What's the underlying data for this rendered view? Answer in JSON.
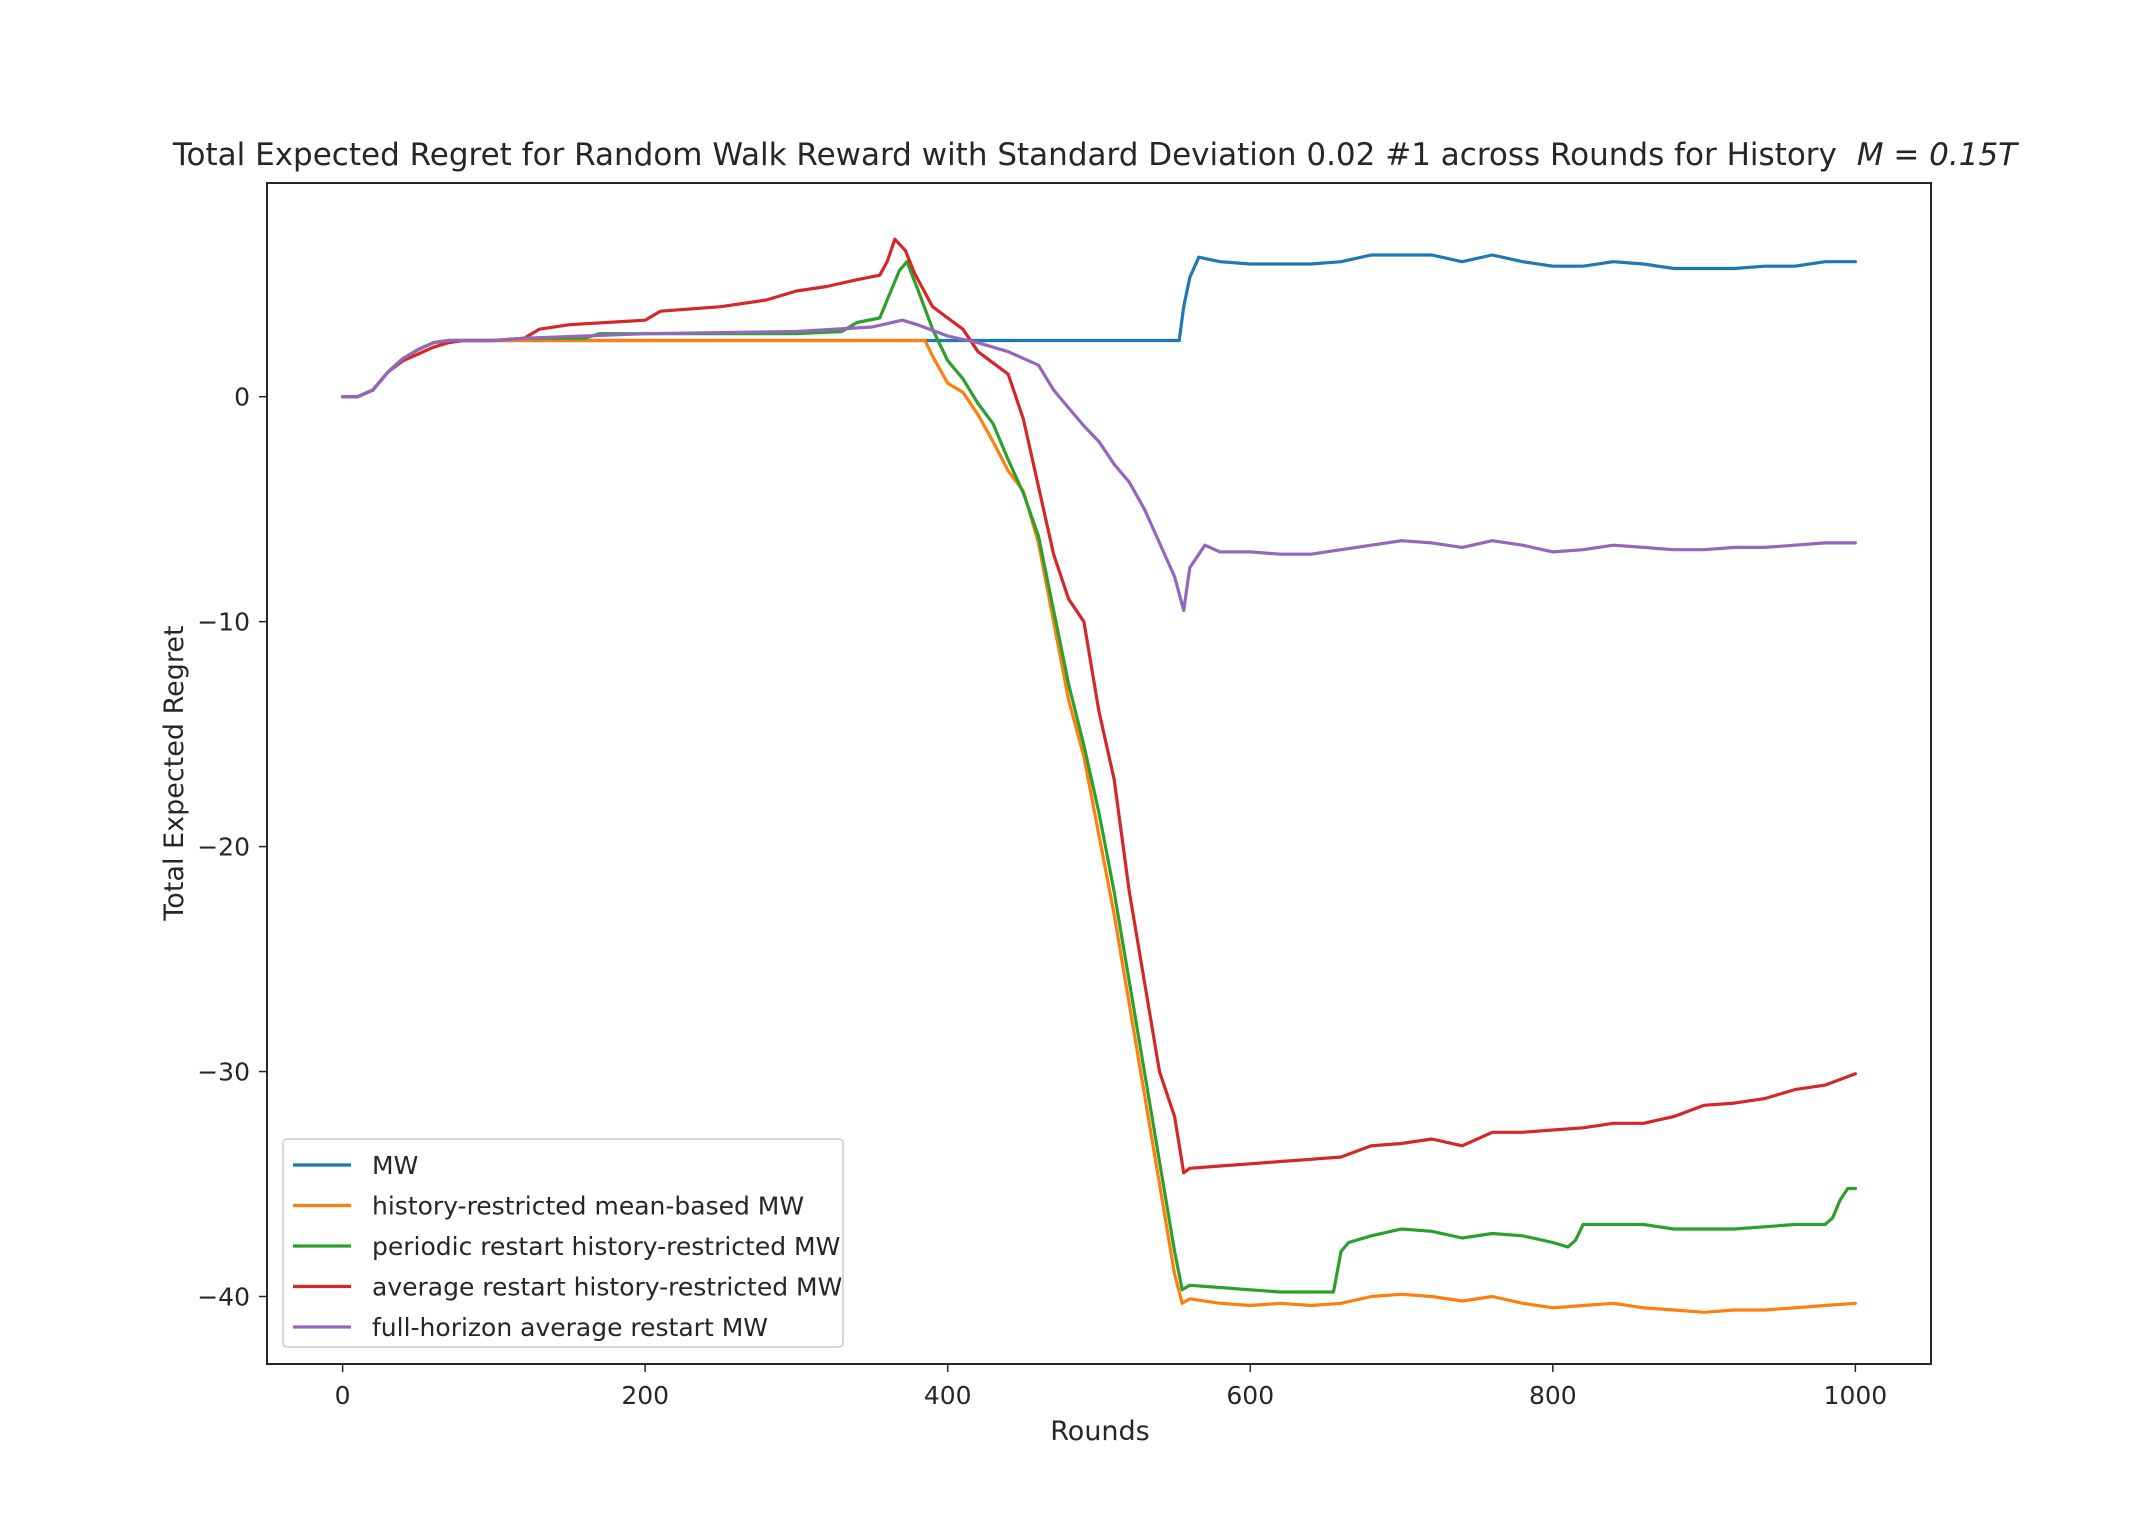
{
  "chart_data": {
    "type": "line",
    "title": "Total Expected Regret for Random Walk Reward with Standard Deviation 0.02 #1 across Rounds for History",
    "title_math": "M = 0.15T",
    "xlabel": "Rounds",
    "ylabel": "Total Expected Regret",
    "xlim": [
      -50,
      1050
    ],
    "ylim": [
      -43,
      9.5
    ],
    "xticks": [
      0,
      200,
      400,
      600,
      800,
      1000
    ],
    "xtick_labels": [
      "0",
      "200",
      "400",
      "600",
      "800",
      "1000"
    ],
    "yticks": [
      0,
      -10,
      -20,
      -30,
      -40
    ],
    "ytick_labels": [
      "0",
      "−10",
      "−20",
      "−30",
      "−40"
    ],
    "grid": false,
    "legend_position": "lower-left",
    "series": [
      {
        "name": "MW",
        "color": "#1f77b4",
        "x": [
          0,
          10,
          20,
          30,
          40,
          50,
          60,
          70,
          80,
          100,
          120,
          160,
          200,
          300,
          400,
          500,
          553,
          556,
          560,
          566,
          580,
          600,
          620,
          640,
          660,
          680,
          700,
          720,
          740,
          760,
          780,
          800,
          820,
          840,
          860,
          880,
          900,
          920,
          940,
          960,
          980,
          1000
        ],
        "y": [
          0,
          0,
          0.3,
          1.1,
          1.7,
          2.1,
          2.4,
          2.5,
          2.5,
          2.5,
          2.5,
          2.5,
          2.5,
          2.5,
          2.5,
          2.5,
          2.5,
          4.0,
          5.3,
          6.2,
          6.0,
          5.9,
          5.9,
          5.9,
          6.0,
          6.3,
          6.3,
          6.3,
          6.0,
          6.3,
          6.0,
          5.8,
          5.8,
          6.0,
          5.9,
          5.7,
          5.7,
          5.7,
          5.8,
          5.8,
          6.0,
          6.0
        ]
      },
      {
        "name": "history-restricted mean-based MW",
        "color": "#ff7f0e",
        "x": [
          0,
          10,
          20,
          30,
          40,
          50,
          60,
          70,
          80,
          100,
          120,
          160,
          200,
          300,
          350,
          385,
          390,
          400,
          410,
          420,
          430,
          440,
          450,
          460,
          470,
          480,
          490,
          500,
          510,
          520,
          530,
          540,
          550,
          555,
          560,
          580,
          600,
          620,
          640,
          660,
          680,
          700,
          720,
          740,
          760,
          780,
          800,
          820,
          840,
          860,
          880,
          900,
          920,
          940,
          960,
          980,
          1000
        ],
        "y": [
          0,
          0,
          0.3,
          1.1,
          1.7,
          2.1,
          2.4,
          2.5,
          2.5,
          2.5,
          2.5,
          2.5,
          2.5,
          2.5,
          2.5,
          2.5,
          1.8,
          0.6,
          0.2,
          -0.8,
          -2.0,
          -3.3,
          -4.2,
          -6.5,
          -10.0,
          -13.5,
          -16.0,
          -19.5,
          -23.0,
          -27.0,
          -31.0,
          -35.0,
          -39.0,
          -40.3,
          -40.1,
          -40.3,
          -40.4,
          -40.3,
          -40.4,
          -40.3,
          -40.0,
          -39.9,
          -40.0,
          -40.2,
          -40.0,
          -40.3,
          -40.5,
          -40.4,
          -40.3,
          -40.5,
          -40.6,
          -40.7,
          -40.6,
          -40.6,
          -40.5,
          -40.4,
          -40.3
        ]
      },
      {
        "name": "periodic restart history-restricted MW",
        "color": "#2ca02c",
        "x": [
          0,
          10,
          20,
          30,
          40,
          50,
          60,
          70,
          80,
          100,
          120,
          160,
          170,
          200,
          300,
          330,
          340,
          355,
          360,
          368,
          373,
          380,
          390,
          400,
          410,
          420,
          430,
          440,
          450,
          460,
          470,
          480,
          490,
          500,
          510,
          520,
          530,
          540,
          550,
          555,
          560,
          580,
          600,
          620,
          640,
          655,
          660,
          665,
          680,
          700,
          720,
          740,
          760,
          780,
          800,
          810,
          815,
          820,
          840,
          860,
          880,
          900,
          920,
          940,
          960,
          980,
          985,
          990,
          995,
          1000
        ],
        "y": [
          0,
          0,
          0.3,
          1.1,
          1.7,
          2.1,
          2.4,
          2.5,
          2.5,
          2.5,
          2.6,
          2.6,
          2.8,
          2.8,
          2.8,
          2.9,
          3.3,
          3.5,
          4.3,
          5.6,
          6.0,
          4.8,
          3.0,
          1.6,
          0.8,
          -0.3,
          -1.2,
          -2.8,
          -4.3,
          -6.2,
          -9.5,
          -12.8,
          -15.5,
          -18.5,
          -22.0,
          -26.0,
          -30.0,
          -34.0,
          -38.0,
          -39.7,
          -39.5,
          -39.6,
          -39.7,
          -39.8,
          -39.8,
          -39.8,
          -38.0,
          -37.6,
          -37.3,
          -37.0,
          -37.1,
          -37.4,
          -37.2,
          -37.3,
          -37.6,
          -37.8,
          -37.5,
          -36.8,
          -36.8,
          -36.8,
          -37.0,
          -37.0,
          -37.0,
          -36.9,
          -36.8,
          -36.8,
          -36.5,
          -35.7,
          -35.2,
          -35.2
        ]
      },
      {
        "name": "average restart history-restricted MW",
        "color": "#d62728",
        "x": [
          0,
          10,
          20,
          30,
          40,
          50,
          60,
          70,
          80,
          100,
          120,
          130,
          150,
          200,
          210,
          250,
          280,
          300,
          320,
          340,
          355,
          360,
          365,
          372,
          378,
          390,
          400,
          410,
          420,
          440,
          450,
          460,
          470,
          480,
          490,
          500,
          510,
          520,
          530,
          540,
          550,
          556,
          560,
          580,
          600,
          620,
          640,
          660,
          680,
          700,
          720,
          740,
          760,
          780,
          800,
          820,
          840,
          860,
          880,
          900,
          920,
          940,
          960,
          980,
          1000
        ],
        "y": [
          0,
          0,
          0.3,
          1.1,
          1.6,
          1.9,
          2.2,
          2.4,
          2.5,
          2.5,
          2.6,
          3.0,
          3.2,
          3.4,
          3.8,
          4.0,
          4.3,
          4.7,
          4.9,
          5.2,
          5.4,
          6.0,
          7.0,
          6.5,
          5.5,
          4.0,
          3.5,
          3.0,
          2.0,
          1.0,
          -1.0,
          -4.0,
          -7.0,
          -9.0,
          -10.0,
          -14.0,
          -17.0,
          -22.0,
          -26.0,
          -30.0,
          -32.0,
          -34.5,
          -34.3,
          -34.2,
          -34.1,
          -34.0,
          -33.9,
          -33.8,
          -33.3,
          -33.2,
          -33.0,
          -33.3,
          -32.7,
          -32.7,
          -32.6,
          -32.5,
          -32.3,
          -32.3,
          -32.0,
          -31.5,
          -31.4,
          -31.2,
          -30.8,
          -30.6,
          -30.1
        ]
      },
      {
        "name": "full-horizon average restart MW",
        "color": "#9467bd",
        "x": [
          0,
          10,
          20,
          30,
          40,
          50,
          60,
          70,
          80,
          100,
          120,
          160,
          200,
          300,
          350,
          370,
          380,
          400,
          420,
          440,
          460,
          470,
          480,
          490,
          500,
          510,
          520,
          530,
          540,
          550,
          556,
          560,
          570,
          580,
          600,
          620,
          640,
          660,
          680,
          700,
          720,
          740,
          760,
          780,
          800,
          820,
          840,
          860,
          880,
          900,
          920,
          940,
          960,
          980,
          1000
        ],
        "y": [
          0,
          0,
          0.3,
          1.1,
          1.7,
          2.1,
          2.4,
          2.5,
          2.5,
          2.5,
          2.6,
          2.7,
          2.8,
          2.9,
          3.1,
          3.4,
          3.2,
          2.7,
          2.4,
          2.0,
          1.4,
          0.3,
          -0.5,
          -1.3,
          -2.0,
          -3.0,
          -3.8,
          -5.0,
          -6.5,
          -8.0,
          -9.5,
          -7.6,
          -6.6,
          -6.9,
          -6.9,
          -7.0,
          -7.0,
          -6.8,
          -6.6,
          -6.4,
          -6.5,
          -6.7,
          -6.4,
          -6.6,
          -6.9,
          -6.8,
          -6.6,
          -6.7,
          -6.8,
          -6.8,
          -6.7,
          -6.7,
          -6.6,
          -6.5,
          -6.5
        ]
      }
    ]
  }
}
